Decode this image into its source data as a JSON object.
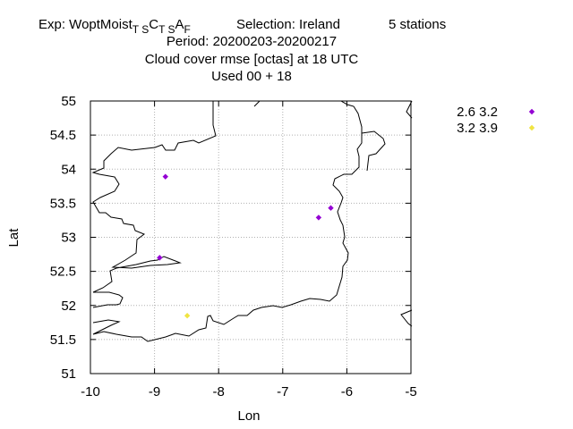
{
  "title": {
    "exp_prefix": "Exp: WoptMoist",
    "exp_subscript_1": "T S",
    "exp_mid_1": "C",
    "exp_subscript_2": "T S",
    "exp_mid_2": "A",
    "exp_subscript_3": "F",
    "selection": "Selection: Ireland",
    "stations": "5 stations",
    "period": "Period: 20200203-20200217",
    "metric": "Cloud cover rmse [octas] at  18 UTC",
    "used": "Used  00 + 18"
  },
  "chart_data": {
    "type": "scatter",
    "title": "Cloud cover rmse [octas] at  18 UTC",
    "xlabel": "Lon",
    "ylabel": "Lat",
    "xlim": [
      -10,
      -5
    ],
    "ylim": [
      51,
      55
    ],
    "x_ticks": [
      "-10",
      "-9",
      "-8",
      "-7",
      "-6",
      "-5"
    ],
    "y_ticks": [
      "51",
      "51.5",
      "52",
      "52.5",
      "53",
      "53.5",
      "54",
      "54.5",
      "55"
    ],
    "grid": true,
    "legend_position": "right, outside plot",
    "series": [
      {
        "name": "2.6 3.2",
        "color": "#9400d3",
        "points": [
          {
            "x": -8.83,
            "y": 53.89
          },
          {
            "x": -8.92,
            "y": 52.7
          },
          {
            "x": -6.44,
            "y": 53.29
          },
          {
            "x": -6.25,
            "y": 53.43
          }
        ]
      },
      {
        "name": "3.2 3.9",
        "color": "#f0e442",
        "points": [
          {
            "x": -8.49,
            "y": 51.85
          }
        ]
      }
    ]
  }
}
